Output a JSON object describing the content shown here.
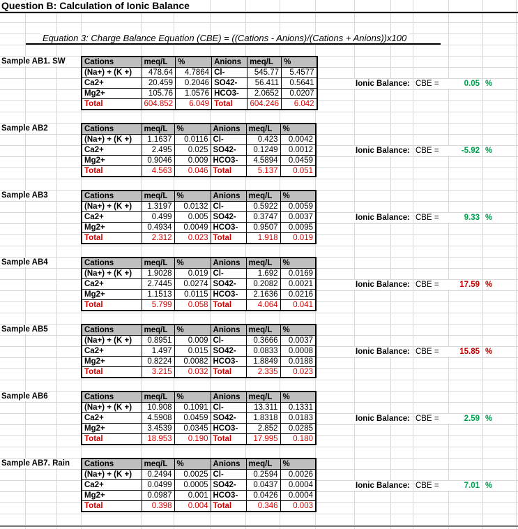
{
  "title": "Question B: Calculation of Ionic Balance",
  "equation": "Equation 3: Charge Balance Equation (CBE) = ((Cations - Anions)/(Cations + Anions))x100",
  "table_headers": [
    "Cations",
    "meq/L",
    "%",
    "Anions",
    "meq/L",
    "%"
  ],
  "ionic_balance": {
    "label": "Ionic Balance:",
    "cbe_label": "CBE =",
    "percent_sign": "%"
  },
  "colors": {
    "total_red": "#d40000",
    "cbe_red": "#c00000",
    "cbe_green": "#00a050",
    "header_bg": "#bfbfbf",
    "gridline": "#d8d8d8"
  },
  "samples": [
    {
      "label": "Sample AB1. SW",
      "rows": [
        {
          "cation": "(Na+) + (K +)",
          "c_meq": "478.64",
          "c_pct": "4.7864",
          "anion": "Cl-",
          "a_meq": "545.77",
          "a_pct": "5.4577"
        },
        {
          "cation": "Ca2+",
          "c_meq": "20.459",
          "c_pct": "0.2046",
          "anion": "SO42-",
          "a_meq": "56.411",
          "a_pct": "0.5641"
        },
        {
          "cation": "Mg2+",
          "c_meq": "105.76",
          "c_pct": "1.0576",
          "anion": "HCO3-",
          "a_meq": "2.0652",
          "a_pct": "0.0207"
        }
      ],
      "total": {
        "label": "Total",
        "c_meq": "604.852",
        "c_pct": "6.049",
        "a_label": "Total",
        "a_meq": "604.246",
        "a_pct": "6.042"
      },
      "cbe": {
        "value": "0.05",
        "color": "green"
      }
    },
    {
      "label": "Sample AB2",
      "rows": [
        {
          "cation": "(Na+) + (K +)",
          "c_meq": "1.1637",
          "c_pct": "0.0116",
          "anion": "Cl-",
          "a_meq": "0.423",
          "a_pct": "0.0042"
        },
        {
          "cation": "Ca2+",
          "c_meq": "2.495",
          "c_pct": "0.025",
          "anion": "SO42-",
          "a_meq": "0.1249",
          "a_pct": "0.0012"
        },
        {
          "cation": "Mg2+",
          "c_meq": "0.9046",
          "c_pct": "0.009",
          "anion": "HCO3-",
          "a_meq": "4.5894",
          "a_pct": "0.0459"
        }
      ],
      "total": {
        "label": "Total",
        "c_meq": "4.563",
        "c_pct": "0.046",
        "a_label": "Total",
        "a_meq": "5.137",
        "a_pct": "0.051"
      },
      "cbe": {
        "value": "-5.92",
        "color": "green"
      }
    },
    {
      "label": "Sample AB3",
      "rows": [
        {
          "cation": "(Na+) + (K +)",
          "c_meq": "1.3197",
          "c_pct": "0.0132",
          "anion": "Cl-",
          "a_meq": "0.5922",
          "a_pct": "0.0059"
        },
        {
          "cation": "Ca2+",
          "c_meq": "0.499",
          "c_pct": "0.005",
          "anion": "SO42-",
          "a_meq": "0.3747",
          "a_pct": "0.0037"
        },
        {
          "cation": "Mg2+",
          "c_meq": "0.4934",
          "c_pct": "0.0049",
          "anion": "HCO3-",
          "a_meq": "0.9507",
          "a_pct": "0.0095"
        }
      ],
      "total": {
        "label": "Total",
        "c_meq": "2.312",
        "c_pct": "0.023",
        "a_label": "Total",
        "a_meq": "1.918",
        "a_pct": "0.019"
      },
      "cbe": {
        "value": "9.33",
        "color": "green"
      }
    },
    {
      "label": "Sample AB4",
      "rows": [
        {
          "cation": "(Na+) + (K +)",
          "c_meq": "1.9028",
          "c_pct": "0.019",
          "anion": "Cl-",
          "a_meq": "1.692",
          "a_pct": "0.0169"
        },
        {
          "cation": "Ca2+",
          "c_meq": "2.7445",
          "c_pct": "0.0274",
          "anion": "SO42-",
          "a_meq": "0.2082",
          "a_pct": "0.0021"
        },
        {
          "cation": "Mg2+",
          "c_meq": "1.1513",
          "c_pct": "0.0115",
          "anion": "HCO3-",
          "a_meq": "2.1636",
          "a_pct": "0.0216"
        }
      ],
      "total": {
        "label": "Total",
        "c_meq": "5.799",
        "c_pct": "0.058",
        "a_label": "Total",
        "a_meq": "4.064",
        "a_pct": "0.041"
      },
      "cbe": {
        "value": "17.59",
        "color": "red"
      }
    },
    {
      "label": "Sample AB5",
      "rows": [
        {
          "cation": "(Na+) + (K +)",
          "c_meq": "0.8951",
          "c_pct": "0.009",
          "anion": "Cl-",
          "a_meq": "0.3666",
          "a_pct": "0.0037"
        },
        {
          "cation": "Ca2+",
          "c_meq": "1.497",
          "c_pct": "0.015",
          "anion": "SO42-",
          "a_meq": "0.0833",
          "a_pct": "0.0008"
        },
        {
          "cation": "Mg2+",
          "c_meq": "0.8224",
          "c_pct": "0.0082",
          "anion": "HCO3-",
          "a_meq": "1.8849",
          "a_pct": "0.0188"
        }
      ],
      "total": {
        "label": "Total",
        "c_meq": "3.215",
        "c_pct": "0.032",
        "a_label": "Total",
        "a_meq": "2.335",
        "a_pct": "0.023"
      },
      "cbe": {
        "value": "15.85",
        "color": "red"
      }
    },
    {
      "label": "Sample AB6",
      "rows": [
        {
          "cation": "(Na+) + (K +)",
          "c_meq": "10.908",
          "c_pct": "0.1091",
          "anion": "Cl-",
          "a_meq": "13.311",
          "a_pct": "0.1331"
        },
        {
          "cation": "Ca2+",
          "c_meq": "4.5908",
          "c_pct": "0.0459",
          "anion": "SO42-",
          "a_meq": "1.8318",
          "a_pct": "0.0183"
        },
        {
          "cation": "Mg2+",
          "c_meq": "3.4539",
          "c_pct": "0.0345",
          "anion": "HCO3-",
          "a_meq": "2.852",
          "a_pct": "0.0285"
        }
      ],
      "total": {
        "label": "Total",
        "c_meq": "18.953",
        "c_pct": "0.190",
        "a_label": "Total",
        "a_meq": "17.995",
        "a_pct": "0.180"
      },
      "cbe": {
        "value": "2.59",
        "color": "green"
      }
    },
    {
      "label": "Sample AB7. Rain",
      "rows": [
        {
          "cation": "(Na+) + (K +)",
          "c_meq": "0.2494",
          "c_pct": "0.0025",
          "anion": "Cl-",
          "a_meq": "0.2594",
          "a_pct": "0.0026"
        },
        {
          "cation": "Ca2+",
          "c_meq": "0.0499",
          "c_pct": "0.0005",
          "anion": "SO42-",
          "a_meq": "0.0437",
          "a_pct": "0.0004"
        },
        {
          "cation": "Mg2+",
          "c_meq": "0.0987",
          "c_pct": "0.001",
          "anion": "HCO3-",
          "a_meq": "0.0426",
          "a_pct": "0.0004"
        }
      ],
      "total": {
        "label": "Total",
        "c_meq": "0.398",
        "c_pct": "0.004",
        "a_label": "Total",
        "a_meq": "0.346",
        "a_pct": "0.003"
      },
      "cbe": {
        "value": "7.01",
        "color": "green"
      }
    }
  ]
}
